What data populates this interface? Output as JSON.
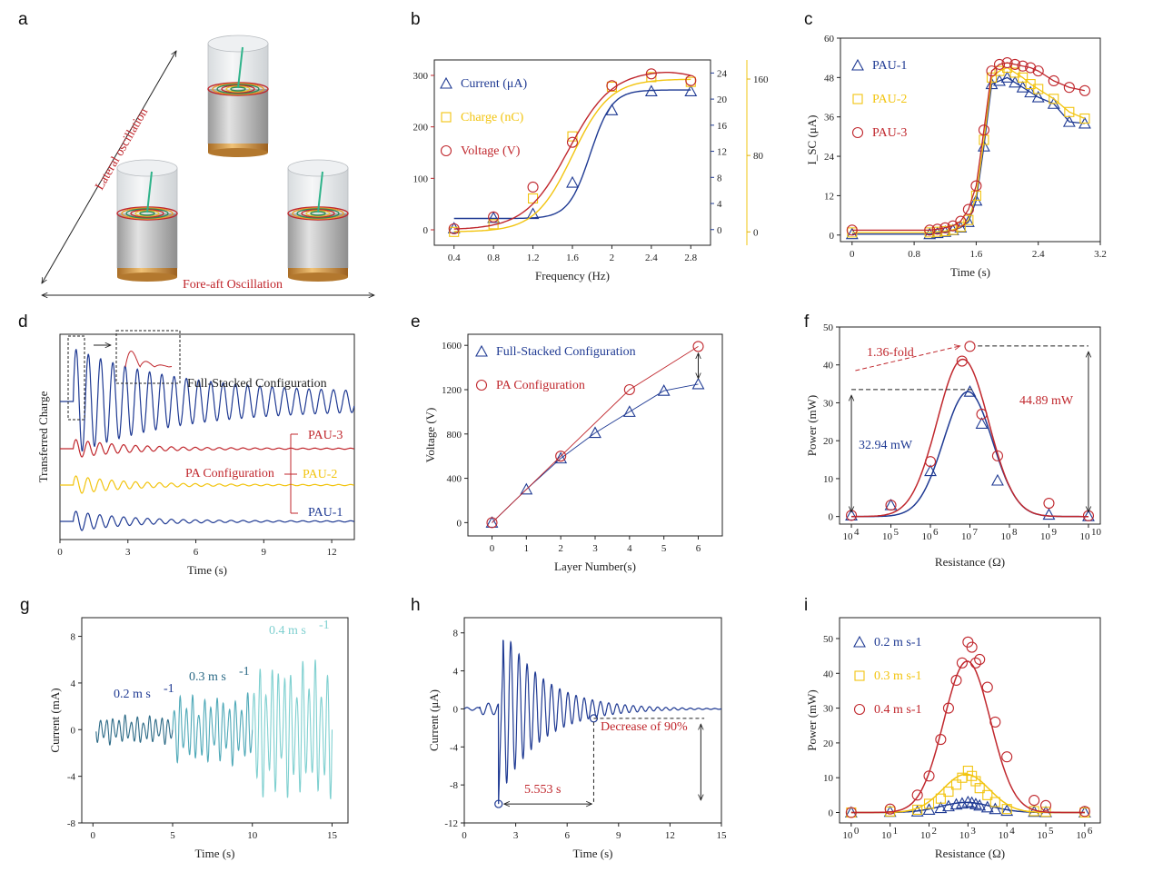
{
  "colors": {
    "blue": "#1f3a93",
    "red": "#c0272d",
    "yellow": "#f2c40f",
    "teal": "#7fd0d0",
    "teal_dark": "#2c6a86",
    "teal_mid": "#4fa9b8",
    "black": "#222222"
  },
  "panel_labels": [
    "a",
    "b",
    "c",
    "d",
    "e",
    "f",
    "g",
    "h",
    "i"
  ],
  "panel_a": {
    "diag_label": "Lateral oscillation",
    "horiz_label": "Fore-aft Oscillation"
  },
  "chart_data": [
    {
      "id": "b",
      "type": "line",
      "xlabel": "Frequency (Hz)",
      "xlim": [
        0.2,
        3.0
      ],
      "xticks": [
        0.4,
        0.8,
        1.2,
        1.6,
        2.0,
        2.4,
        2.8
      ],
      "axes": [
        {
          "side": "left",
          "ylim": [
            -30,
            330
          ],
          "ticks": [
            0,
            100,
            200,
            300
          ],
          "color": "red"
        },
        {
          "side": "right1",
          "ylim": [
            -2.4,
            26
          ],
          "ticks": [
            0,
            4,
            8,
            12,
            16,
            20,
            24
          ],
          "color": "blue"
        },
        {
          "side": "right2",
          "ylim": [
            -14,
            180
          ],
          "ticks": [
            0,
            80,
            160
          ],
          "color": "yellow"
        }
      ],
      "series": [
        {
          "name": "Current (μA)",
          "marker": "triangle",
          "color": "blue",
          "axis": 1,
          "x": [
            0.4,
            0.8,
            1.2,
            1.6,
            2.0,
            2.4,
            2.8
          ],
          "values": [
            0.2,
            1.8,
            2.4,
            7.2,
            18.3,
            21.2,
            21.2
          ],
          "fit": {
            "type": "sigmoid",
            "lo": 1.7,
            "hi": 21.4,
            "x0": 1.78,
            "k": 0.11
          }
        },
        {
          "name": "Charge (nC)",
          "marker": "square",
          "color": "yellow",
          "axis": 2,
          "x": [
            0.4,
            0.8,
            1.2,
            1.6,
            2.0,
            2.4,
            2.8
          ],
          "values": [
            0,
            8,
            35,
            100,
            152,
            162,
            157
          ],
          "fit": {
            "type": "sigmoid",
            "lo": 0,
            "hi": 160,
            "x0": 1.6,
            "k": 0.19
          }
        },
        {
          "name": "Voltage (V)",
          "marker": "circle",
          "color": "red",
          "axis": 0,
          "x": [
            0.4,
            0.8,
            1.2,
            1.6,
            2.0,
            2.4,
            2.8
          ],
          "values": [
            2,
            25,
            83,
            170,
            280,
            303,
            290
          ],
          "fit": {
            "type": "sigmoid-peak",
            "lo": 0,
            "hi": 310,
            "x0": 1.56,
            "k": 0.22
          }
        }
      ]
    },
    {
      "id": "c",
      "type": "line",
      "xlabel": "Time (s)",
      "ylabel": "I_SC (μA)",
      "xlim": [
        -0.15,
        3.2
      ],
      "ylim": [
        -2,
        60
      ],
      "xticks": [
        0.0,
        0.8,
        1.6,
        2.4,
        3.2
      ],
      "yticks": [
        0,
        12,
        24,
        36,
        48,
        60
      ],
      "series": [
        {
          "name": "PAU-1",
          "marker": "triangle",
          "color": "blue",
          "x": [
            0,
            1.0,
            1.1,
            1.2,
            1.3,
            1.4,
            1.5,
            1.6,
            1.7,
            1.8,
            1.9,
            2.0,
            2.1,
            2.2,
            2.3,
            2.4,
            2.6,
            2.8,
            3.0
          ],
          "values": [
            0.3,
            0.3,
            0.6,
            1.0,
            1.5,
            2.3,
            4,
            10.5,
            27,
            46,
            47,
            48,
            46.5,
            45,
            43.5,
            42,
            40,
            34.5,
            34
          ]
        },
        {
          "name": "PAU-2",
          "marker": "square",
          "color": "yellow",
          "x": [
            0,
            1.0,
            1.1,
            1.2,
            1.3,
            1.4,
            1.5,
            1.6,
            1.7,
            1.8,
            1.9,
            2.0,
            2.1,
            2.2,
            2.3,
            2.4,
            2.6,
            2.8,
            3.0
          ],
          "values": [
            0.8,
            0.8,
            1.0,
            1.2,
            1.6,
            2.5,
            4.6,
            12,
            29,
            48,
            50,
            51,
            49.5,
            48,
            46,
            44.5,
            41.5,
            37.5,
            35.5
          ]
        },
        {
          "name": "PAU-3",
          "marker": "circle",
          "color": "red",
          "x": [
            0,
            1.0,
            1.1,
            1.2,
            1.3,
            1.4,
            1.5,
            1.6,
            1.7,
            1.8,
            1.9,
            2.0,
            2.1,
            2.2,
            2.3,
            2.4,
            2.6,
            2.8,
            3.0
          ],
          "values": [
            1.5,
            1.5,
            1.8,
            2.2,
            2.8,
            4.2,
            7.8,
            15,
            32,
            50,
            52,
            52.5,
            52,
            51.5,
            51,
            50,
            47,
            45,
            44
          ]
        }
      ]
    },
    {
      "id": "d",
      "type": "line",
      "xlabel": "Time (s)",
      "ylabel": "Transferred Charge",
      "xlim": [
        0,
        13
      ],
      "xticks": [
        0,
        3,
        6,
        9,
        12
      ],
      "labels": {
        "full": "Full-Stacked Configuration",
        "pa": "PA Configuration",
        "pau3": "PAU-3",
        "pau2": "PAU-2",
        "pau1": "PAU-1"
      },
      "series": [
        {
          "name": "Full-Stacked Configuration",
          "color": "blue",
          "amp": 1.0,
          "decay": 0.22,
          "freq": 1.85,
          "residual": 0.18
        },
        {
          "name": "PAU-3",
          "color": "red",
          "amp": 0.55,
          "decay": 0.35,
          "freq": 1.9,
          "residual": 0.03
        },
        {
          "name": "PAU-2",
          "color": "yellow",
          "amp": 0.55,
          "decay": 0.35,
          "freq": 1.9,
          "residual": 0.03
        },
        {
          "name": "PAU-1",
          "color": "blue",
          "amp": 0.55,
          "decay": 0.35,
          "freq": 1.9,
          "residual": 0.03
        }
      ]
    },
    {
      "id": "e",
      "type": "line",
      "xlabel": "Layer Number(s)",
      "ylabel": "Voltage (V)",
      "xlim": [
        -0.7,
        6.7
      ],
      "ylim": [
        -120,
        1700
      ],
      "xticks": [
        0,
        1,
        2,
        3,
        4,
        5,
        6
      ],
      "yticks": [
        0,
        400,
        800,
        1200,
        1600
      ],
      "series": [
        {
          "name": "Full-Stacked Configuration",
          "marker": "triangle",
          "color": "blue",
          "x": [
            0,
            1,
            2,
            3,
            4,
            5,
            6
          ],
          "values": [
            0,
            300,
            580,
            810,
            1000,
            1190,
            1250
          ]
        },
        {
          "name": "PA Configuration",
          "marker": "circle",
          "color": "red",
          "x": [
            0,
            2,
            4,
            6
          ],
          "values": [
            0,
            600,
            1200,
            1590
          ]
        }
      ]
    },
    {
      "id": "f",
      "type": "scatter",
      "xlabel": "Resistance (Ω)",
      "ylabel": "Power (mW)",
      "xscale": "log",
      "xlim": [
        3.7,
        10.3
      ],
      "ylim": [
        -2,
        50
      ],
      "xticks_exp": [
        4,
        5,
        6,
        7,
        8,
        9,
        10
      ],
      "yticks": [
        0,
        10,
        20,
        30,
        40,
        50
      ],
      "annotations": {
        "fold": "1.36-fold",
        "blue_val": "32.94 mW",
        "red_val": "44.89 mW"
      },
      "series": [
        {
          "name": "blue",
          "marker": "triangle",
          "color": "blue",
          "x": [
            4,
            5,
            6,
            7,
            7.3,
            7.7,
            9,
            10
          ],
          "values": [
            0.3,
            3,
            12,
            32.94,
            24.5,
            9.5,
            0.5,
            0.1
          ],
          "fit": {
            "peak": 32.94,
            "center": 6.95,
            "width": 0.62
          }
        },
        {
          "name": "red",
          "marker": "circle",
          "color": "red",
          "x": [
            4,
            5,
            6,
            6.8,
            7,
            7.3,
            7.7,
            9,
            10
          ],
          "values": [
            0.3,
            3,
            14.5,
            41,
            44.89,
            27,
            16,
            3.5,
            0.2
          ],
          "fit": {
            "peak": 41.5,
            "center": 6.82,
            "width": 0.65
          }
        }
      ]
    },
    {
      "id": "g",
      "type": "line",
      "xlabel": "Time (s)",
      "ylabel": "Current (mA)",
      "xlim": [
        -0.7,
        16
      ],
      "ylim": [
        -8,
        9.6
      ],
      "xticks": [
        0,
        5,
        10,
        15
      ],
      "yticks": [
        -8,
        -4,
        0,
        4,
        8
      ],
      "speed_labels": [
        "0.2 m s",
        "0.3 m s",
        "0.4 m s"
      ],
      "speed_sup": "-1",
      "series": [
        {
          "name": "0.2 m s-1",
          "color": "teal_dark",
          "t": [
            0.2,
            5
          ],
          "amp": 1.2,
          "freq": 2.6
        },
        {
          "name": "0.3 m s-1",
          "color": "teal_mid",
          "t": [
            5,
            10
          ],
          "amp": 2.9,
          "freq": 2.6
        },
        {
          "name": "0.4 m s-1",
          "color": "teal",
          "t": [
            10,
            15
          ],
          "amp": 5.8,
          "freq": 2.6
        }
      ]
    },
    {
      "id": "h",
      "type": "line",
      "xlabel": "Time (s)",
      "ylabel": "Current (μA)",
      "xlim": [
        0,
        15
      ],
      "ylim": [
        -12,
        9.6
      ],
      "xticks": [
        0,
        3,
        6,
        9,
        12,
        15
      ],
      "yticks": [
        -12,
        -8,
        -4,
        0,
        4,
        8
      ],
      "annotations": {
        "decrease": "Decrease of 90%",
        "interval": "5.553 s",
        "t1": 2.0,
        "t2": 7.55,
        "min": -10,
        "marker2": -1.0
      },
      "series": [
        {
          "name": "current",
          "color": "blue",
          "t0": 2.0,
          "amp": 9.5,
          "decay": 0.42,
          "freq": 2.1
        }
      ]
    },
    {
      "id": "i",
      "type": "scatter",
      "xlabel": "Resistance (Ω)",
      "ylabel": "Power (mW)",
      "xscale": "log",
      "xlim": [
        -0.3,
        6.4
      ],
      "ylim": [
        -3,
        56
      ],
      "xticks_exp": [
        0,
        1,
        2,
        3,
        4,
        5,
        6
      ],
      "yticks": [
        0,
        10,
        20,
        30,
        40,
        50
      ],
      "series": [
        {
          "name": "0.2 m s-1",
          "marker": "triangle",
          "color": "blue",
          "x": [
            0,
            1,
            1.7,
            2,
            2.3,
            2.5,
            2.7,
            2.85,
            3,
            3.1,
            3.2,
            3.3,
            3.5,
            3.7,
            4,
            4.7,
            5,
            6
          ],
          "values": [
            0,
            0.2,
            0.3,
            0.8,
            1.3,
            1.8,
            2.3,
            2.6,
            3,
            2.8,
            2.4,
            2,
            1.5,
            1,
            0.5,
            0.2,
            0.1,
            0
          ],
          "fit": {
            "peak": 2.9,
            "center": 2.95,
            "width": 0.65
          }
        },
        {
          "name": "0.3 m s-1",
          "marker": "square",
          "color": "yellow",
          "x": [
            0,
            1,
            1.7,
            2,
            2.3,
            2.5,
            2.7,
            2.85,
            3,
            3.1,
            3.2,
            3.3,
            3.5,
            3.7,
            4,
            4.7,
            5,
            6
          ],
          "values": [
            0,
            0.3,
            0.8,
            2.5,
            4,
            6,
            8,
            10,
            12,
            10.5,
            9,
            7,
            5,
            3,
            1,
            0.4,
            0.2,
            0
          ],
          "fit": {
            "peak": 11,
            "center": 2.95,
            "width": 0.6
          }
        },
        {
          "name": "0.4 m s-1",
          "marker": "circle",
          "color": "red",
          "x": [
            0,
            1,
            1.7,
            2,
            2.3,
            2.5,
            2.7,
            2.85,
            3,
            3.1,
            3.2,
            3.3,
            3.5,
            3.7,
            4,
            4.7,
            5,
            6
          ],
          "values": [
            0,
            1,
            5,
            10.5,
            21,
            30,
            38,
            43,
            49,
            47.5,
            43,
            44,
            36,
            26,
            16,
            3.5,
            2,
            0.3
          ],
          "fit": {
            "peak": 43.5,
            "center": 2.98,
            "width": 0.6
          }
        }
      ]
    }
  ]
}
